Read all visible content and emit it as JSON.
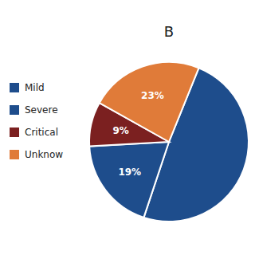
{
  "chart_data": {
    "type": "pie",
    "title": "B",
    "categories": [
      "Mild",
      "Severe",
      "Critical",
      "Unknow"
    ],
    "values": [
      49,
      19,
      9,
      23
    ],
    "value_labels": [
      null,
      "19%",
      "9%",
      "23%"
    ],
    "colors": [
      "#1E4D8C",
      "#1E4D8C",
      "#7B2020",
      "#E07B39"
    ],
    "data_labels": true,
    "legend": "left"
  }
}
